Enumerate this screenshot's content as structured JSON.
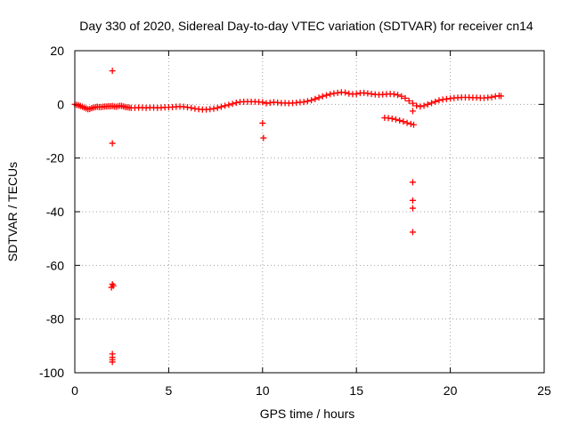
{
  "chart_data": {
    "type": "scatter",
    "title": "Day 330 of 2020, Sidereal Day-to-day VTEC variation (SDTVAR) for receiver cn14",
    "xlabel": "GPS time / hours",
    "ylabel": "SDTVAR / TECUs",
    "xlim": [
      0,
      25
    ],
    "ylim": [
      -100,
      20
    ],
    "xticks": [
      0,
      5,
      10,
      15,
      20,
      25
    ],
    "yticks": [
      -100,
      -80,
      -60,
      -40,
      -20,
      0,
      20
    ],
    "grid": true,
    "marker": "plus",
    "color": "#ff0000",
    "series": [
      {
        "name": "main_trace",
        "points": [
          [
            0.0,
            0.0
          ],
          [
            0.1,
            -0.2
          ],
          [
            0.2,
            -0.4
          ],
          [
            0.3,
            -0.6
          ],
          [
            0.4,
            -0.9
          ],
          [
            0.5,
            -1.2
          ],
          [
            0.6,
            -1.5
          ],
          [
            0.7,
            -1.8
          ],
          [
            0.8,
            -1.7
          ],
          [
            0.9,
            -1.4
          ],
          [
            1.0,
            -1.2
          ],
          [
            1.1,
            -1.0
          ],
          [
            1.2,
            -0.9
          ],
          [
            1.3,
            -1.0
          ],
          [
            1.4,
            -1.0
          ],
          [
            1.5,
            -0.9
          ],
          [
            1.6,
            -0.8
          ],
          [
            1.7,
            -0.8
          ],
          [
            1.8,
            -0.7
          ],
          [
            1.9,
            -0.7
          ],
          [
            2.0,
            -0.6
          ],
          [
            2.1,
            -0.8
          ],
          [
            2.2,
            -0.9
          ],
          [
            2.3,
            -0.7
          ],
          [
            2.4,
            -0.5
          ],
          [
            2.5,
            -0.6
          ],
          [
            2.6,
            -0.8
          ],
          [
            2.7,
            -1.0
          ],
          [
            2.8,
            -1.1
          ],
          [
            2.9,
            -1.2
          ],
          [
            3.0,
            -1.3
          ],
          [
            3.2,
            -1.3
          ],
          [
            3.4,
            -1.2
          ],
          [
            3.6,
            -1.2
          ],
          [
            3.8,
            -1.3
          ],
          [
            4.0,
            -1.2
          ],
          [
            4.2,
            -1.2
          ],
          [
            4.4,
            -1.3
          ],
          [
            4.6,
            -1.2
          ],
          [
            4.8,
            -1.1
          ],
          [
            5.0,
            -1.1
          ],
          [
            5.2,
            -1.0
          ],
          [
            5.4,
            -0.9
          ],
          [
            5.6,
            -0.8
          ],
          [
            5.8,
            -0.9
          ],
          [
            6.0,
            -1.1
          ],
          [
            6.2,
            -1.3
          ],
          [
            6.4,
            -1.6
          ],
          [
            6.6,
            -1.8
          ],
          [
            6.8,
            -1.9
          ],
          [
            7.0,
            -1.9
          ],
          [
            7.2,
            -1.8
          ],
          [
            7.4,
            -1.6
          ],
          [
            7.6,
            -1.3
          ],
          [
            7.8,
            -0.9
          ],
          [
            8.0,
            -0.5
          ],
          [
            8.2,
            -0.2
          ],
          [
            8.4,
            0.2
          ],
          [
            8.6,
            0.6
          ],
          [
            8.8,
            0.9
          ],
          [
            9.0,
            1.0
          ],
          [
            9.2,
            1.0
          ],
          [
            9.4,
            1.0
          ],
          [
            9.6,
            1.0
          ],
          [
            9.8,
            0.9
          ],
          [
            10.0,
            0.8
          ],
          [
            10.2,
            0.4
          ],
          [
            10.4,
            0.6
          ],
          [
            10.6,
            0.8
          ],
          [
            10.8,
            0.7
          ],
          [
            11.0,
            0.5
          ],
          [
            11.2,
            0.5
          ],
          [
            11.4,
            0.4
          ],
          [
            11.6,
            0.5
          ],
          [
            11.8,
            0.6
          ],
          [
            12.0,
            0.8
          ],
          [
            12.2,
            0.9
          ],
          [
            12.4,
            1.2
          ],
          [
            12.6,
            1.5
          ],
          [
            12.8,
            2.0
          ],
          [
            13.0,
            2.5
          ],
          [
            13.2,
            3.0
          ],
          [
            13.4,
            3.4
          ],
          [
            13.6,
            3.8
          ],
          [
            13.8,
            4.1
          ],
          [
            14.0,
            4.3
          ],
          [
            14.2,
            4.5
          ],
          [
            14.4,
            4.4
          ],
          [
            14.6,
            4.0
          ],
          [
            14.8,
            3.8
          ],
          [
            15.0,
            3.9
          ],
          [
            15.2,
            4.2
          ],
          [
            15.4,
            4.3
          ],
          [
            15.6,
            4.1
          ],
          [
            15.8,
            3.9
          ],
          [
            16.0,
            3.7
          ],
          [
            16.2,
            3.6
          ],
          [
            16.4,
            3.7
          ],
          [
            16.6,
            3.8
          ],
          [
            16.8,
            3.9
          ],
          [
            17.0,
            3.8
          ],
          [
            17.2,
            3.5
          ],
          [
            17.4,
            3.0
          ],
          [
            17.6,
            2.3
          ],
          [
            17.8,
            1.3
          ],
          [
            18.0,
            0.4
          ],
          [
            18.2,
            -0.5
          ],
          [
            18.4,
            -0.8
          ],
          [
            18.6,
            -0.5
          ],
          [
            18.8,
            0.0
          ],
          [
            19.0,
            0.5
          ],
          [
            19.2,
            1.0
          ],
          [
            19.4,
            1.5
          ],
          [
            19.6,
            1.8
          ],
          [
            19.8,
            2.0
          ],
          [
            20.0,
            2.2
          ],
          [
            20.2,
            2.4
          ],
          [
            20.4,
            2.5
          ],
          [
            20.6,
            2.6
          ],
          [
            20.8,
            2.6
          ],
          [
            21.0,
            2.6
          ],
          [
            21.2,
            2.5
          ],
          [
            21.4,
            2.5
          ],
          [
            21.6,
            2.4
          ],
          [
            21.8,
            2.4
          ],
          [
            22.0,
            2.5
          ],
          [
            22.2,
            2.7
          ],
          [
            22.4,
            3.0
          ],
          [
            22.6,
            3.2
          ],
          [
            22.7,
            3.1
          ]
        ]
      },
      {
        "name": "lower_branch",
        "points": [
          [
            16.5,
            -5.0
          ],
          [
            16.7,
            -5.1
          ],
          [
            16.9,
            -5.3
          ],
          [
            17.1,
            -5.6
          ],
          [
            17.3,
            -6.0
          ],
          [
            17.5,
            -6.4
          ],
          [
            17.7,
            -6.9
          ],
          [
            17.9,
            -7.3
          ],
          [
            18.05,
            -7.6
          ]
        ]
      },
      {
        "name": "outliers",
        "points": [
          [
            2.0,
            12.5
          ],
          [
            2.0,
            -14.5
          ],
          [
            2.0,
            -67.0
          ],
          [
            2.05,
            -67.6
          ],
          [
            1.95,
            -68.2
          ],
          [
            2.0,
            -93.0
          ],
          [
            2.0,
            -94.3
          ],
          [
            2.0,
            -95.2
          ],
          [
            2.0,
            -96.0
          ],
          [
            10.0,
            -7.0
          ],
          [
            10.05,
            -12.5
          ],
          [
            18.0,
            -2.5
          ],
          [
            18.0,
            -29.0
          ],
          [
            18.0,
            -35.8
          ],
          [
            18.0,
            -38.7
          ],
          [
            18.0,
            -47.6
          ]
        ]
      }
    ]
  }
}
